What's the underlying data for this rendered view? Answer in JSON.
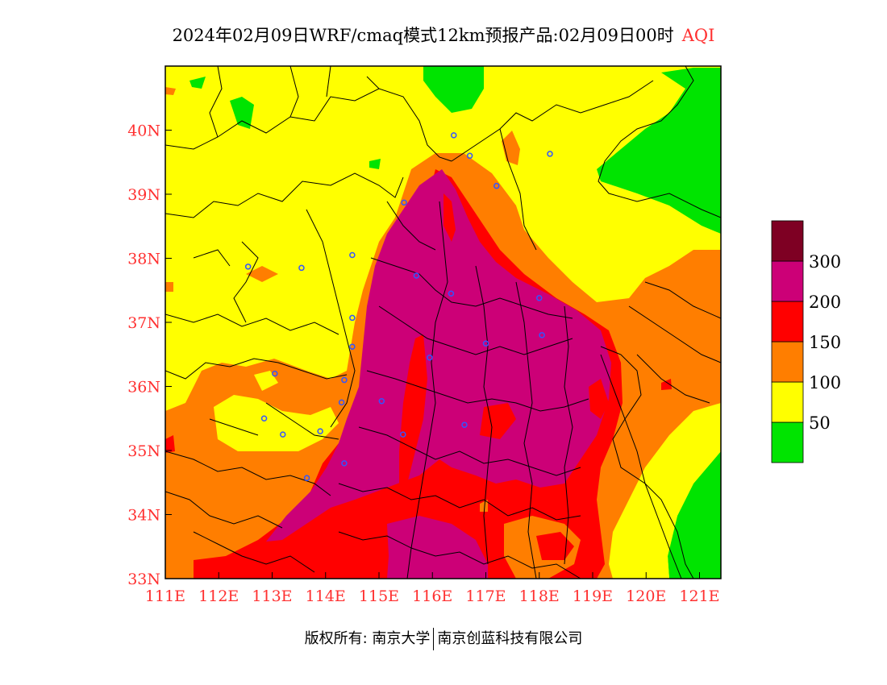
{
  "title": {
    "main": "2024年02月09日WRF/cmaq模式12km预报产品:02月09日00时",
    "variable": "AQI"
  },
  "axes": {
    "x_ticks": [
      "111E",
      "112E",
      "113E",
      "114E",
      "115E",
      "116E",
      "117E",
      "118E",
      "119E",
      "120E",
      "121E"
    ],
    "y_ticks": [
      "33N",
      "34N",
      "35N",
      "36N",
      "37N",
      "38N",
      "39N",
      "40N"
    ],
    "tick_color": "#ff3030"
  },
  "extent": {
    "lon": [
      111,
      121.4
    ],
    "lat": [
      33,
      41
    ]
  },
  "legend": {
    "bins": [
      {
        "color": "#00e400"
      },
      {
        "color": "#ffff00",
        "label": "50"
      },
      {
        "color": "#ff7e00",
        "label": "100"
      },
      {
        "color": "#ff0000",
        "label": "150"
      },
      {
        "color": "#cc0077",
        "label": "200"
      },
      {
        "color": "#7e0023",
        "label": "300"
      }
    ]
  },
  "footer": {
    "left": "版权所有: 南京大学",
    "right": "南京创蓝科技有限公司"
  },
  "stations": [
    [
      116.4,
      39.92
    ],
    [
      116.7,
      39.6
    ],
    [
      117.2,
      39.13
    ],
    [
      118.2,
      39.63
    ],
    [
      115.47,
      38.87
    ],
    [
      114.5,
      38.05
    ],
    [
      112.55,
      37.87
    ],
    [
      113.55,
      37.85
    ],
    [
      115.7,
      37.73
    ],
    [
      116.35,
      37.45
    ],
    [
      118.0,
      37.38
    ],
    [
      114.5,
      37.07
    ],
    [
      114.5,
      36.62
    ],
    [
      115.95,
      36.45
    ],
    [
      117.0,
      36.67
    ],
    [
      118.05,
      36.8
    ],
    [
      114.35,
      36.1
    ],
    [
      114.3,
      35.75
    ],
    [
      115.05,
      35.77
    ],
    [
      116.6,
      35.4
    ],
    [
      115.45,
      35.25
    ],
    [
      113.9,
      35.3
    ],
    [
      113.2,
      35.25
    ],
    [
      112.85,
      35.5
    ],
    [
      113.05,
      36.2
    ],
    [
      114.35,
      34.8
    ],
    [
      113.65,
      34.57
    ]
  ]
}
